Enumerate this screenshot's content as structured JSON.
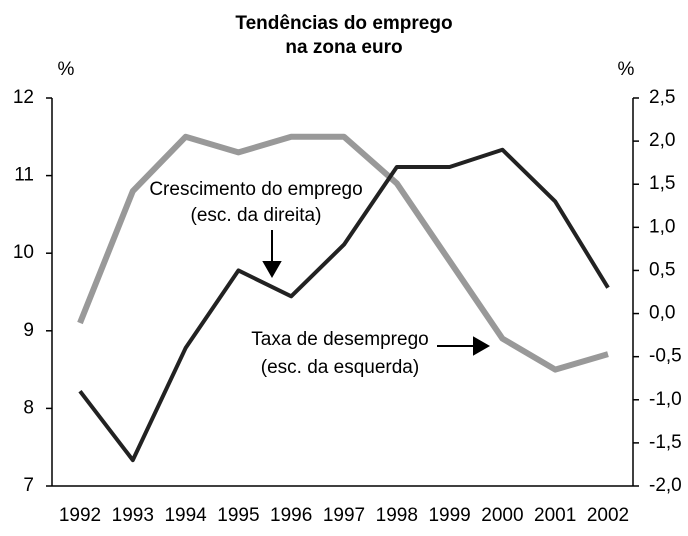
{
  "chart_data": {
    "type": "line",
    "title": [
      "Tendências do emprego",
      "na zona euro"
    ],
    "ylabel": "%",
    "y2label": "%",
    "categories": [
      "1992",
      "1993",
      "1994",
      "1995",
      "1996",
      "1997",
      "1998",
      "1999",
      "2000",
      "2001",
      "2002"
    ],
    "series": [
      {
        "name": "Taxa de desemprego (esc. da esquerda)",
        "color": "#999999",
        "axis": "y",
        "values": [
          9.1,
          10.8,
          11.5,
          11.3,
          11.5,
          11.5,
          10.9,
          9.9,
          8.9,
          8.5,
          8.7
        ]
      },
      {
        "name": "Crescimento do emprego (esc. da direita)",
        "color": "#222222",
        "axis": "y2",
        "values": [
          -0.9,
          -1.7,
          -0.4,
          0.5,
          0.2,
          0.8,
          1.7,
          1.7,
          1.9,
          1.3,
          0.3
        ]
      }
    ],
    "annotations": [
      [
        "Crescimento do emprego",
        "(esc. da direita)"
      ],
      [
        "Taxa de desemprego",
        "(esc. da esquerda)"
      ]
    ],
    "ylim": [
      7,
      12
    ],
    "yticks": [
      7,
      8,
      9,
      10,
      11,
      12
    ],
    "y2lim": [
      -2.0,
      2.5
    ],
    "y2ticks": [
      {
        "value": -2.0,
        "label": "-2,0"
      },
      {
        "value": -1.5,
        "label": "-1,5"
      },
      {
        "value": -1.0,
        "label": "-1,0"
      },
      {
        "value": -0.5,
        "label": "-0,5"
      },
      {
        "value": 0.0,
        "label": "0,0"
      },
      {
        "value": 0.5,
        "label": "0,5"
      },
      {
        "value": 1.0,
        "label": "1,0"
      },
      {
        "value": 1.5,
        "label": "1,5"
      },
      {
        "value": 2.0,
        "label": "2,0"
      },
      {
        "value": 2.5,
        "label": "2,5"
      }
    ],
    "grid": false
  }
}
